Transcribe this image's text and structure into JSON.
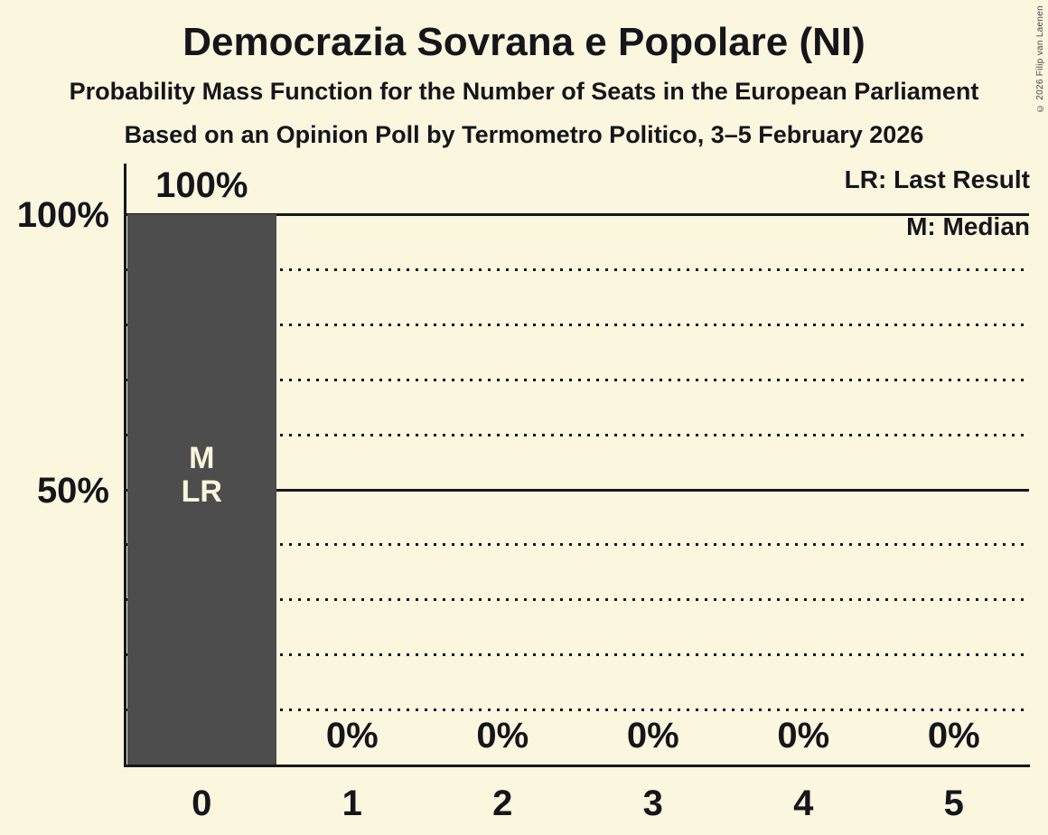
{
  "meta": {
    "copyright": "© 2026 Filip van Laenen"
  },
  "header": {
    "title": "Democrazia Sovrana e Popolare (NI)",
    "subtitle1": "Probability Mass Function for the Number of Seats in the European Parliament",
    "subtitle2": "Based on an Opinion Poll by Termometro Politico, 3–5 February 2026"
  },
  "legend": {
    "lr": "LR: Last Result",
    "m": "M: Median"
  },
  "chart_data": {
    "type": "bar",
    "title": "Democrazia Sovrana e Popolare (NI)",
    "subtitle": "Probability Mass Function for the Number of Seats in the European Parliament",
    "source_note": "Based on an Opinion Poll by Termometro Politico, 3–5 February 2026",
    "categories": [
      "0",
      "1",
      "2",
      "3",
      "4",
      "5"
    ],
    "values": [
      100,
      0,
      0,
      0,
      0,
      0
    ],
    "value_labels": [
      "100%",
      "0%",
      "0%",
      "0%",
      "0%",
      "0%"
    ],
    "ylim": [
      0,
      100
    ],
    "y_ticks": [
      {
        "pct": 100,
        "label": "100%"
      },
      {
        "pct": 50,
        "label": "50%"
      }
    ],
    "gridlines": {
      "dotted_pcts": [
        10,
        20,
        30,
        40,
        60,
        70,
        80,
        90
      ],
      "solid_pcts": [
        50,
        100
      ]
    },
    "annotations": [
      {
        "category_index": 0,
        "lines": [
          "M",
          "LR"
        ]
      }
    ],
    "legend_notes": [
      "LR: Last Result",
      "M: Median"
    ],
    "grid": true,
    "legend_position": "top-right",
    "colors": {
      "background": "#fbf6de",
      "bar": "#4d4d4d",
      "ink": "#15161c",
      "bar_text": "#faf5dc"
    }
  }
}
